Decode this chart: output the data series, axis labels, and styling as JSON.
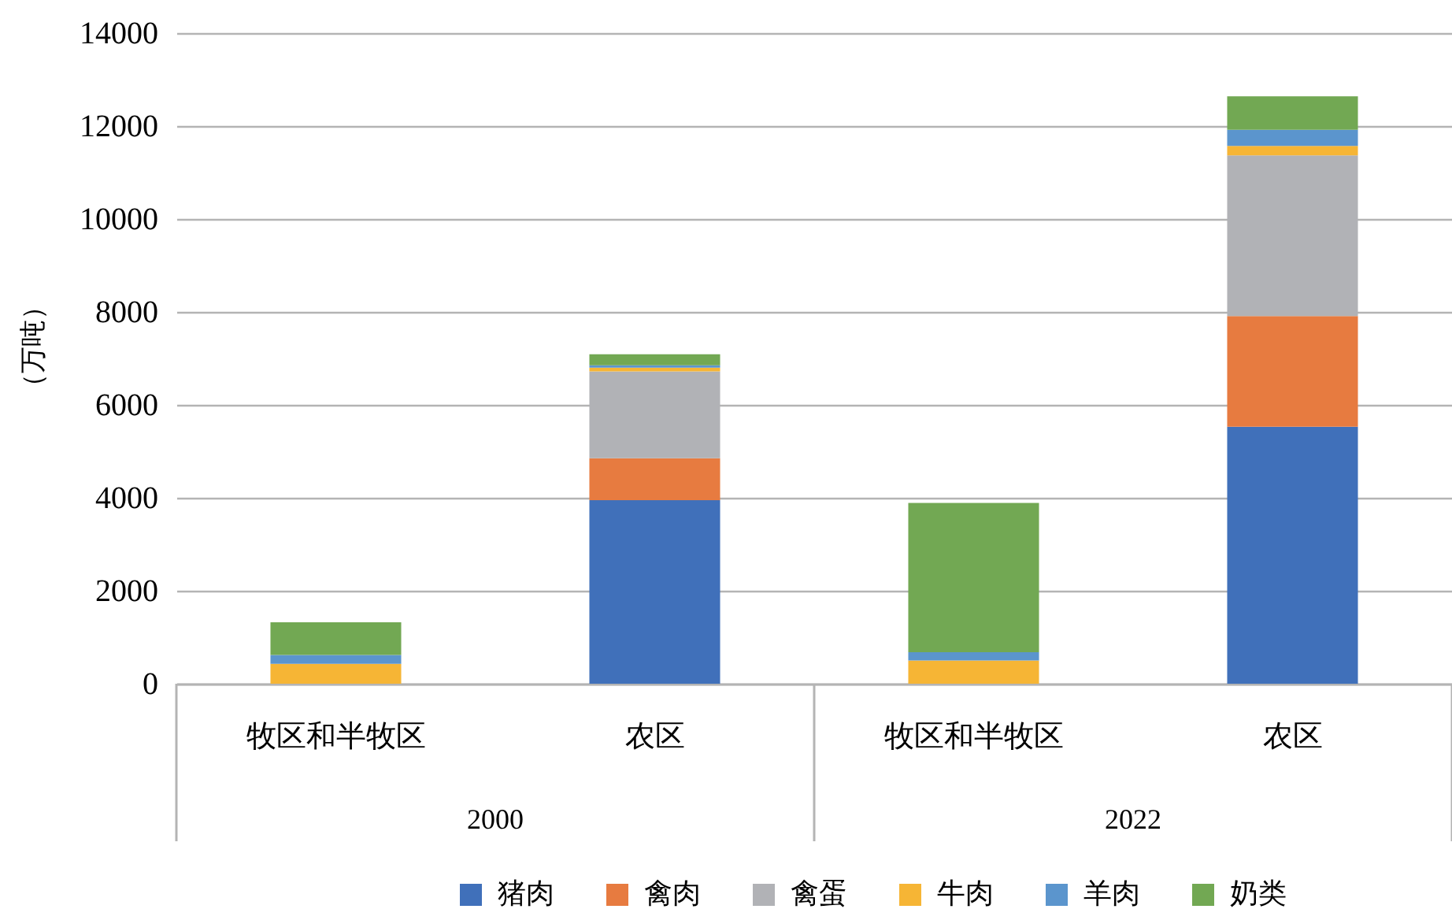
{
  "chart_data": {
    "type": "bar",
    "stacked": true,
    "categories": [
      "牧区和半牧区",
      "农区",
      "牧区和半牧区",
      "农区"
    ],
    "annotations": [
      "2000",
      "2022"
    ],
    "ylabel": "（万吨）",
    "ylim": [
      0,
      14000
    ],
    "yticks": [
      0,
      2000,
      4000,
      6000,
      8000,
      10000,
      12000,
      14000
    ],
    "grid": "y",
    "legend": "bottom",
    "series": [
      {
        "name": "猪肉",
        "color": "#4070ba",
        "values": [
          0,
          3950,
          0,
          5530
        ]
      },
      {
        "name": "禽肉",
        "color": "#e77b40",
        "values": [
          0,
          900,
          0,
          2380
        ]
      },
      {
        "name": "禽蛋",
        "color": "#b1b2b6",
        "values": [
          0,
          1870,
          0,
          3460
        ]
      },
      {
        "name": "牛肉",
        "color": "#f6b535",
        "values": [
          430,
          80,
          500,
          200
        ]
      },
      {
        "name": "羊肉",
        "color": "#5b95cd",
        "values": [
          190,
          50,
          180,
          350
        ]
      },
      {
        "name": "奶类",
        "color": "#72a853",
        "values": [
          700,
          240,
          3210,
          720
        ]
      }
    ]
  }
}
